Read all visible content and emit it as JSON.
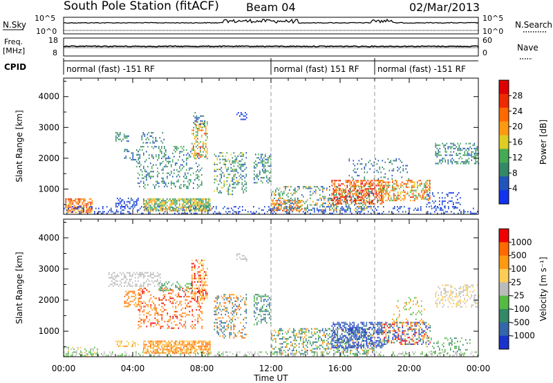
{
  "header": {
    "station": "South Pole Station (fitACF)",
    "beam": "Beam 04",
    "date": "02/Mar/2013"
  },
  "top_panels": {
    "nsky_label": "N.Sky",
    "nsky_ticks": [
      "10^5",
      "10^0"
    ],
    "nsearch_label": "N.Search",
    "nsearch_ticks": [
      "10^5",
      "10^0"
    ],
    "freq_label_1": "Freq.",
    "freq_label_2": "[MHz]",
    "freq_ticks": [
      "18",
      "8"
    ],
    "nave_label": "Nave",
    "nave_ticks": [
      "60",
      "0"
    ],
    "cpid_label": "CPID",
    "cpid_segments": [
      {
        "label": "normal (fast) -151 RF",
        "start_hour": 0,
        "end_hour": 12
      },
      {
        "label": "normal (fast) 151 RF",
        "start_hour": 12,
        "end_hour": 18
      },
      {
        "label": "normal (fast) -151 RF",
        "start_hour": 18,
        "end_hour": 24
      }
    ]
  },
  "chart_data": [
    {
      "type": "heatmap",
      "xlabel": "Time UT",
      "ylabel": "Slant Range [km]",
      "x_ticks": [
        "00:00",
        "04:00",
        "08:00",
        "12:00",
        "16:00",
        "20:00",
        "00:00"
      ],
      "x_range_hours": [
        0,
        24
      ],
      "y_ticks": [
        1000,
        2000,
        3000,
        4000
      ],
      "ylim": [
        180,
        4600
      ],
      "colorbar_label": "Power [dB]",
      "colorbar_ticks": [
        4,
        8,
        12,
        16,
        20,
        24,
        28
      ],
      "colorbar_range": [
        0,
        32
      ],
      "colorbar_colors": [
        "#1133ee",
        "#2255bb",
        "#338866",
        "#44aa55",
        "#ddcc22",
        "#ff9911",
        "#ff6a00",
        "#ee2a00",
        "#dd0000"
      ]
    },
    {
      "type": "heatmap",
      "xlabel": "Time UT",
      "ylabel": "Slant Range [km]",
      "x_ticks": [
        "00:00",
        "04:00",
        "08:00",
        "12:00",
        "16:00",
        "20:00",
        "00:00"
      ],
      "x_range_hours": [
        0,
        24
      ],
      "y_ticks": [
        1000,
        2000,
        3000,
        4000
      ],
      "ylim": [
        180,
        4600
      ],
      "colorbar_label": "Velocity [m s⁻¹]",
      "colorbar_ticks": [
        "1000",
        "500",
        "100",
        "25",
        "-25",
        "-100",
        "-500",
        "-1000"
      ],
      "colorbar_colors": [
        "#1a33cc",
        "#3366aa",
        "#338866",
        "#55bb44",
        "#bbbbbb",
        "#ffcc55",
        "#ff9911",
        "#ff6a00",
        "#ee0000"
      ]
    }
  ],
  "scatter_regions": {
    "power": [
      {
        "t0": 0.1,
        "t1": 1.7,
        "r0": 250,
        "r1": 700,
        "colors": [
          "#ff6a00",
          "#ff9911",
          "#ee2a00",
          "#ddcc22"
        ],
        "density": 0.7
      },
      {
        "t0": 0.0,
        "t1": 24.0,
        "r0": 200,
        "r1": 450,
        "colors": [
          "#1133ee",
          "#2255bb"
        ],
        "density": 0.25
      },
      {
        "t0": 3.0,
        "t1": 3.8,
        "r0": 2550,
        "r1": 2850,
        "colors": [
          "#2255bb",
          "#338866",
          "#44aa55"
        ],
        "density": 0.45
      },
      {
        "t0": 3.5,
        "t1": 4.4,
        "r0": 1950,
        "r1": 2300,
        "colors": [
          "#2255bb",
          "#338866"
        ],
        "density": 0.35
      },
      {
        "t0": 3.0,
        "t1": 4.3,
        "r0": 450,
        "r1": 720,
        "colors": [
          "#1133ee",
          "#2255bb"
        ],
        "density": 0.3
      },
      {
        "t0": 4.2,
        "t1": 8.0,
        "r0": 1000,
        "r1": 2400,
        "colors": [
          "#2255bb",
          "#338866",
          "#44aa55"
        ],
        "density": 0.22
      },
      {
        "t0": 4.5,
        "t1": 5.8,
        "r0": 2500,
        "r1": 2850,
        "colors": [
          "#2255bb",
          "#338866"
        ],
        "density": 0.3
      },
      {
        "t0": 4.6,
        "t1": 8.5,
        "r0": 300,
        "r1": 700,
        "colors": [
          "#44aa55",
          "#ddcc22",
          "#ff9911",
          "#338866"
        ],
        "density": 0.75
      },
      {
        "t0": 7.4,
        "t1": 8.3,
        "r0": 2000,
        "r1": 3200,
        "colors": [
          "#ddcc22",
          "#ff9911",
          "#ee2a00",
          "#44aa55"
        ],
        "density": 0.45
      },
      {
        "t0": 7.5,
        "t1": 8.2,
        "r0": 3000,
        "r1": 3500,
        "colors": [
          "#338866",
          "#2255bb"
        ],
        "density": 0.2
      },
      {
        "t0": 8.7,
        "t1": 10.6,
        "r0": 800,
        "r1": 2200,
        "colors": [
          "#2255bb",
          "#338866",
          "#44aa55",
          "#ddcc22"
        ],
        "density": 0.3
      },
      {
        "t0": 10.0,
        "t1": 10.6,
        "r0": 3250,
        "r1": 3500,
        "colors": [
          "#2255bb",
          "#1133ee"
        ],
        "density": 0.45
      },
      {
        "t0": 11.0,
        "t1": 12.0,
        "r0": 1200,
        "r1": 2200,
        "colors": [
          "#2255bb",
          "#338866",
          "#44aa55"
        ],
        "density": 0.35
      },
      {
        "t0": 12.0,
        "t1": 13.8,
        "r0": 300,
        "r1": 650,
        "colors": [
          "#ff6a00",
          "#ff9911",
          "#ee2a00",
          "#ddcc22"
        ],
        "density": 0.6
      },
      {
        "t0": 12.0,
        "t1": 18.0,
        "r0": 300,
        "r1": 1100,
        "colors": [
          "#2255bb",
          "#338866",
          "#44aa55",
          "#ff9911"
        ],
        "density": 0.32
      },
      {
        "t0": 15.5,
        "t1": 18.5,
        "r0": 500,
        "r1": 1300,
        "colors": [
          "#ee2a00",
          "#ff6a00",
          "#dd0000",
          "#ff9911"
        ],
        "density": 0.55
      },
      {
        "t0": 18.2,
        "t1": 21.2,
        "r0": 600,
        "r1": 1300,
        "colors": [
          "#ee2a00",
          "#ff9911",
          "#ddcc22",
          "#44aa55",
          "#ff6a00"
        ],
        "density": 0.5
      },
      {
        "t0": 16.5,
        "t1": 20.0,
        "r0": 1300,
        "r1": 2000,
        "colors": [
          "#2255bb",
          "#338866"
        ],
        "density": 0.15
      },
      {
        "t0": 21.0,
        "t1": 23.0,
        "r0": 400,
        "r1": 900,
        "colors": [
          "#2255bb",
          "#1133ee"
        ],
        "density": 0.2
      },
      {
        "t0": 21.5,
        "t1": 24.0,
        "r0": 1800,
        "r1": 2500,
        "colors": [
          "#2255bb",
          "#338866",
          "#44aa55"
        ],
        "density": 0.4
      }
    ],
    "velocity": [
      {
        "t0": 0.0,
        "t1": 2.0,
        "r0": 200,
        "r1": 500,
        "colors": [
          "#bbbbbb",
          "#55bb44",
          "#ffcc55"
        ],
        "density": 0.35
      },
      {
        "t0": 0.0,
        "t1": 24.0,
        "r0": 200,
        "r1": 350,
        "colors": [
          "#55bb44",
          "#bbbbbb"
        ],
        "density": 0.3
      },
      {
        "t0": 2.6,
        "t1": 5.6,
        "r0": 2450,
        "r1": 2900,
        "colors": [
          "#bbbbbb"
        ],
        "density": 0.4
      },
      {
        "t0": 3.5,
        "t1": 4.5,
        "r0": 1800,
        "r1": 2300,
        "colors": [
          "#ff9911",
          "#ff6a00"
        ],
        "density": 0.35
      },
      {
        "t0": 4.3,
        "t1": 8.0,
        "r0": 1100,
        "r1": 2400,
        "colors": [
          "#ff9911",
          "#ff6a00",
          "#ee0000"
        ],
        "density": 0.28
      },
      {
        "t0": 3.0,
        "t1": 4.3,
        "r0": 500,
        "r1": 700,
        "colors": [
          "#ff9911",
          "#ffcc55"
        ],
        "density": 0.3
      },
      {
        "t0": 4.6,
        "t1": 8.5,
        "r0": 300,
        "r1": 700,
        "colors": [
          "#ff9911",
          "#ffcc55",
          "#ff6a00"
        ],
        "density": 0.75
      },
      {
        "t0": 5.5,
        "t1": 7.5,
        "r0": 2300,
        "r1": 2600,
        "colors": [
          "#55bb44",
          "#338866"
        ],
        "density": 0.3
      },
      {
        "t0": 7.4,
        "t1": 8.3,
        "r0": 2000,
        "r1": 3300,
        "colors": [
          "#ff9911",
          "#ffcc55",
          "#ee0000"
        ],
        "density": 0.4
      },
      {
        "t0": 8.7,
        "t1": 10.6,
        "r0": 800,
        "r1": 2200,
        "colors": [
          "#ff9911",
          "#3366aa",
          "#338866",
          "#ff6a00"
        ],
        "density": 0.32
      },
      {
        "t0": 10.0,
        "t1": 10.6,
        "r0": 3250,
        "r1": 3500,
        "colors": [
          "#bbbbbb"
        ],
        "density": 0.45
      },
      {
        "t0": 11.0,
        "t1": 12.0,
        "r0": 1200,
        "r1": 2200,
        "colors": [
          "#3366aa",
          "#338866",
          "#55bb44"
        ],
        "density": 0.35
      },
      {
        "t0": 12.0,
        "t1": 18.0,
        "r0": 300,
        "r1": 1100,
        "colors": [
          "#338866",
          "#55bb44",
          "#3366aa",
          "#ff9911"
        ],
        "density": 0.35
      },
      {
        "t0": 15.5,
        "t1": 18.5,
        "r0": 500,
        "r1": 1300,
        "colors": [
          "#1a33cc",
          "#3366aa"
        ],
        "density": 0.55
      },
      {
        "t0": 18.3,
        "t1": 21.2,
        "r0": 600,
        "r1": 1300,
        "colors": [
          "#338866",
          "#1a33cc",
          "#ff9911",
          "#ee0000"
        ],
        "density": 0.45
      },
      {
        "t0": 19.0,
        "t1": 21.0,
        "r0": 1300,
        "r1": 2100,
        "colors": [
          "#ff9911",
          "#55bb44"
        ],
        "density": 0.15
      },
      {
        "t0": 21.5,
        "t1": 24.0,
        "r0": 1800,
        "r1": 2500,
        "colors": [
          "#bbbbbb",
          "#ffcc55"
        ],
        "density": 0.35
      },
      {
        "t0": 21.0,
        "t1": 23.5,
        "r0": 300,
        "r1": 800,
        "colors": [
          "#55bb44",
          "#338866"
        ],
        "density": 0.2
      }
    ]
  }
}
